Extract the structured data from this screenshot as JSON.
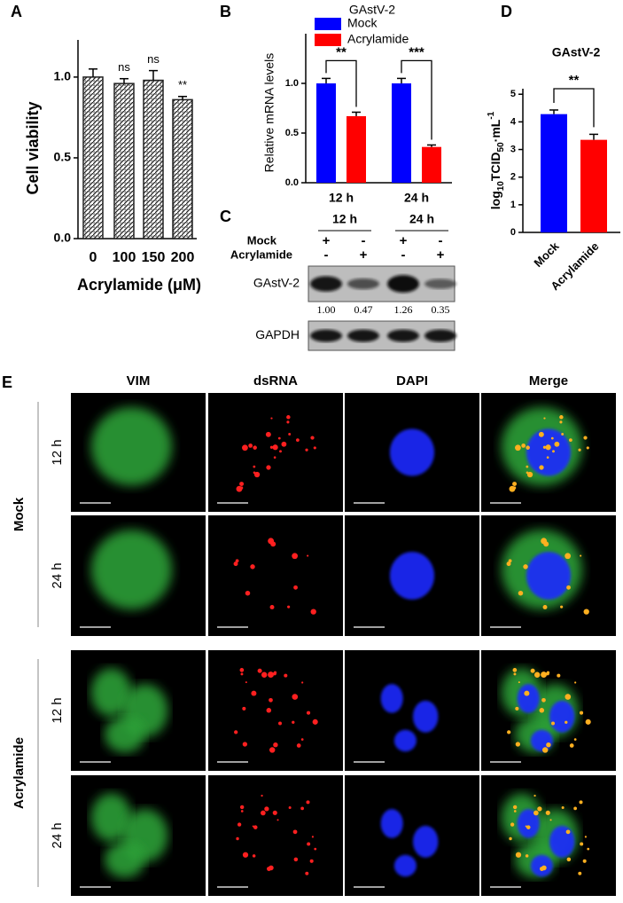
{
  "chart_data": [
    {
      "type": "bar",
      "panel": "A",
      "categories": [
        "0",
        "100",
        "150",
        "200"
      ],
      "values": [
        1.0,
        0.96,
        0.98,
        0.86
      ],
      "errors": [
        0.05,
        0.03,
        0.06,
        0.02
      ],
      "value_annotations": [
        null,
        "ns",
        "ns",
        "**"
      ],
      "color": "#222222",
      "ylabel": "Cell viability",
      "xlabel": "Acrylamide (μM)",
      "ylim": [
        0,
        1.23
      ],
      "yticks": [
        {
          "value": 0,
          "label": "0.0"
        },
        {
          "value": 0.5,
          "label": "0.5"
        },
        {
          "value": 1,
          "label": "1.0"
        }
      ]
    },
    {
      "type": "grouped_bar",
      "panel": "B",
      "title": "GAstV-2",
      "categories": [
        "12 h",
        "24 h"
      ],
      "series": [
        {
          "name": "Mock",
          "color": "#0000ff",
          "values": [
            1.0,
            1.0
          ],
          "errors": [
            0.05,
            0.05
          ]
        },
        {
          "name": "Acrylamide",
          "color": "#ff0000",
          "values": [
            0.67,
            0.36
          ],
          "errors": [
            0.04,
            0.02
          ]
        }
      ],
      "significance": [
        "**",
        "***"
      ],
      "ylabel": "Relative mRNA levels",
      "ylim": [
        0,
        1.5
      ],
      "yticks": [
        {
          "value": 0,
          "label": "0.0"
        },
        {
          "value": 0.5,
          "label": "0.5"
        },
        {
          "value": 1,
          "label": "1.0"
        }
      ],
      "legend": "top"
    },
    {
      "type": "bar",
      "panel": "D",
      "title": "GAstV-2",
      "categories": [
        "Mock",
        "Acrylamide"
      ],
      "values": [
        4.28,
        3.35
      ],
      "errors": [
        0.15,
        0.2
      ],
      "colors": [
        "#0000ff",
        "#ff0000"
      ],
      "significance": "**",
      "ylabel": [
        "log",
        "10",
        "TCID",
        "50",
        "·mL",
        "-1"
      ],
      "ylim": [
        0,
        5.2
      ],
      "yticks": [
        0,
        1,
        2,
        3,
        4,
        5
      ]
    }
  ],
  "blot": {
    "panel": "C",
    "times": [
      "12 h",
      "24 h"
    ],
    "rows": [
      {
        "label": "Mock",
        "signs": [
          "+",
          "-",
          "+",
          "-"
        ]
      },
      {
        "label": "Acrylamide",
        "signs": [
          "-",
          "+",
          "-",
          "+"
        ]
      }
    ],
    "bands": [
      "GAstV-2",
      "GAPDH"
    ],
    "quant": [
      1.0,
      0.47,
      1.26,
      0.35
    ],
    "quant_labels": [
      "1.00",
      "0.47",
      "1.26",
      "0.35"
    ]
  },
  "microscopy": {
    "panel": "E",
    "columns": [
      {
        "label": "VIM",
        "color": "#2db84b"
      },
      {
        "label": "dsRNA",
        "color": "#e8262a"
      },
      {
        "label": "DAPI",
        "color": "#1f7fd0"
      },
      {
        "label": "Merge",
        "color": "#000000"
      }
    ],
    "groups": [
      {
        "label": "Mock",
        "rows": [
          "12 h",
          "24 h"
        ]
      },
      {
        "label": "Acrylamide",
        "rows": [
          "12 h",
          "24 h"
        ]
      }
    ]
  }
}
